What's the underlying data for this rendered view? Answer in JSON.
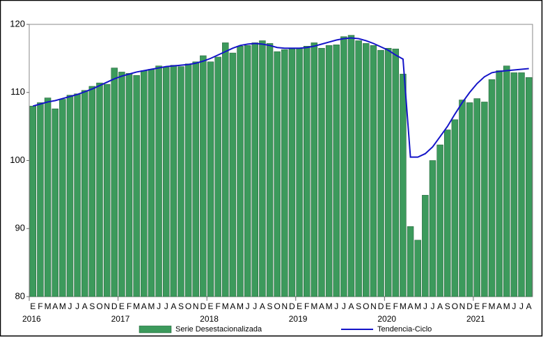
{
  "chart_data": {
    "type": "bar",
    "categories": [
      "E",
      "F",
      "M",
      "A",
      "M",
      "J",
      "J",
      "A",
      "S",
      "O",
      "N",
      "D",
      "E",
      "F",
      "M",
      "A",
      "M",
      "J",
      "J",
      "A",
      "S",
      "O",
      "N",
      "D",
      "E",
      "F",
      "M",
      "A",
      "M",
      "J",
      "J",
      "A",
      "S",
      "O",
      "N",
      "D",
      "E",
      "F",
      "M",
      "A",
      "M",
      "J",
      "J",
      "A",
      "S",
      "O",
      "N",
      "D",
      "E",
      "F",
      "M",
      "A",
      "M",
      "J",
      "J",
      "A",
      "S",
      "O",
      "N",
      "D",
      "E",
      "F",
      "M",
      "A",
      "M",
      "J",
      "J",
      "A"
    ],
    "year_labels": [
      "2016",
      "2017",
      "2018",
      "2019",
      "2020",
      "2021"
    ],
    "series": [
      {
        "name": "Serie Desestacionalizada",
        "type": "bar",
        "color": "#3c9a5c",
        "values": [
          108.0,
          108.5,
          109.2,
          107.6,
          109.0,
          109.6,
          109.8,
          110.3,
          110.9,
          111.4,
          111.2,
          113.6,
          113.0,
          112.8,
          112.5,
          113.2,
          113.4,
          113.9,
          113.7,
          114.0,
          113.8,
          114.2,
          114.5,
          115.4,
          114.5,
          115.2,
          117.3,
          115.8,
          116.8,
          116.9,
          117.3,
          117.6,
          117.2,
          116.0,
          116.3,
          116.4,
          116.5,
          116.8,
          117.3,
          116.5,
          116.9,
          117.0,
          118.2,
          118.4,
          117.6,
          117.2,
          116.9,
          116.2,
          116.5,
          116.4,
          112.7,
          90.3,
          88.3,
          94.9,
          100.0,
          102.3,
          104.5,
          106.0,
          108.9,
          108.5,
          109.1,
          108.6,
          111.9,
          113.2,
          113.9,
          112.9,
          112.9,
          112.2
        ]
      },
      {
        "name": "Tendencia-Ciclo",
        "type": "line",
        "color": "#1414c8",
        "values": [
          108.0,
          108.3,
          108.6,
          108.8,
          109.1,
          109.4,
          109.7,
          110.1,
          110.5,
          111.0,
          111.5,
          112.0,
          112.4,
          112.7,
          113.0,
          113.2,
          113.4,
          113.6,
          113.8,
          113.9,
          114.0,
          114.1,
          114.3,
          114.6,
          115.0,
          115.5,
          116.0,
          116.5,
          116.9,
          117.1,
          117.2,
          117.1,
          116.9,
          116.6,
          116.5,
          116.5,
          116.5,
          116.6,
          116.8,
          117.1,
          117.4,
          117.7,
          117.9,
          118.0,
          117.9,
          117.6,
          117.2,
          116.7,
          116.2,
          115.5,
          114.9,
          100.5,
          100.5,
          101.0,
          102.0,
          103.5,
          105.0,
          106.8,
          108.5,
          110.0,
          111.3,
          112.3,
          112.9,
          113.1,
          113.2,
          113.3,
          113.4,
          113.5
        ]
      }
    ],
    "ylim": [
      80,
      120
    ],
    "yticks": [
      80,
      90,
      100,
      110,
      120
    ],
    "grid": false
  }
}
